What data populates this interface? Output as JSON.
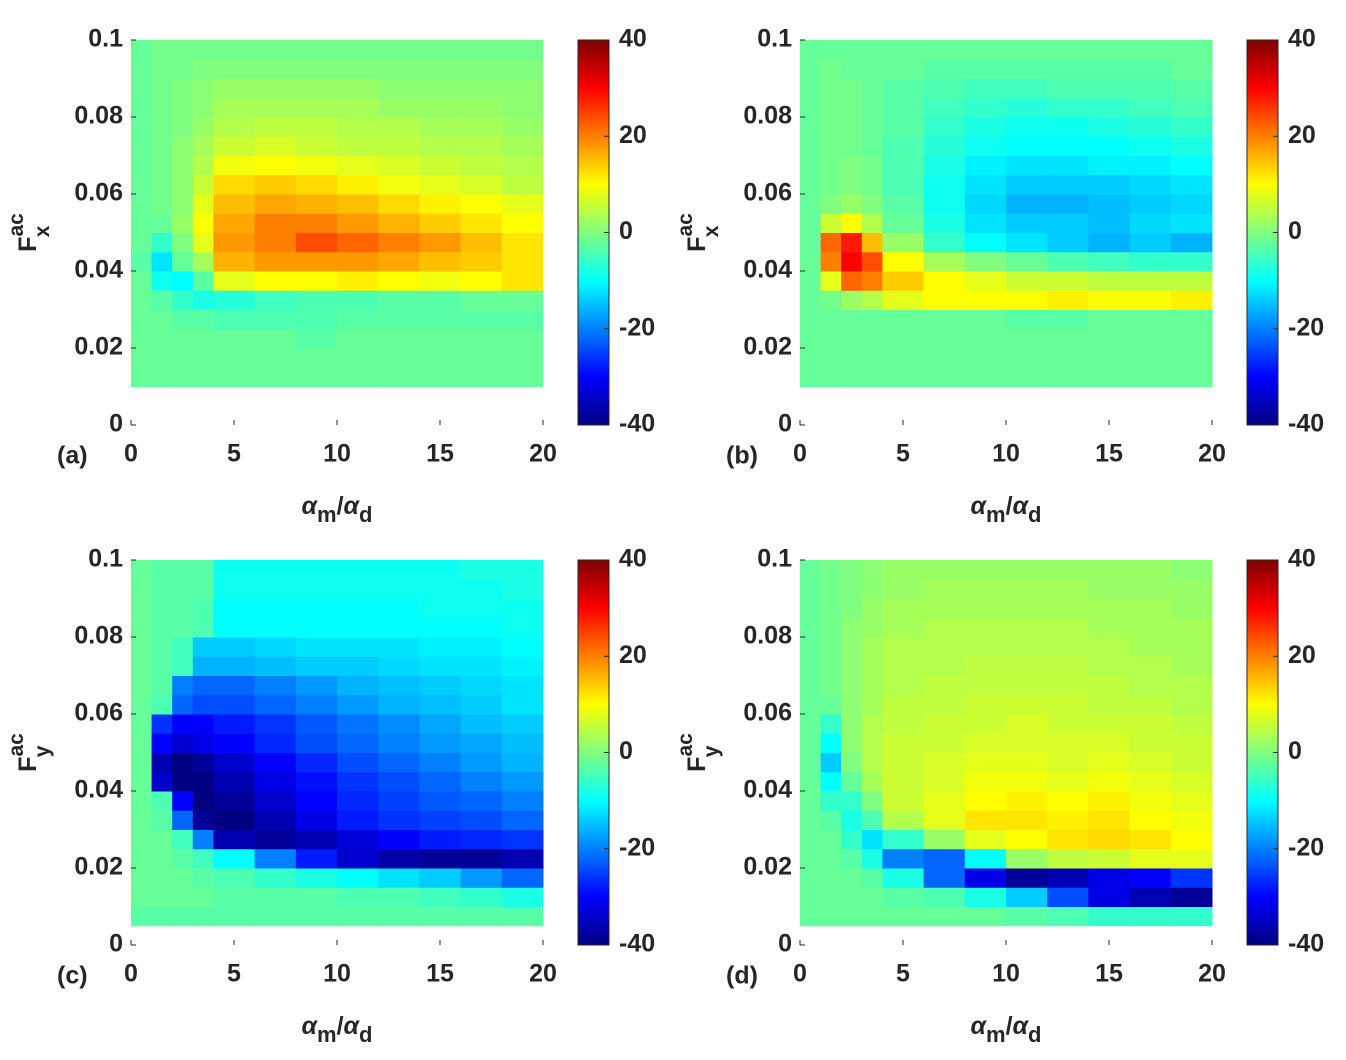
{
  "chart_data": [
    {
      "type": "heatmap",
      "panel_label": "(a)",
      "colormap": "jet",
      "xlabel": {
        "num": "α",
        "num_sub": "m",
        "sep": "/",
        "den": "α",
        "den_sub": "d"
      },
      "ylabel": {
        "main": "F",
        "sub": "x",
        "sup": "ac"
      },
      "xlim": [
        0,
        20
      ],
      "ylim": [
        0,
        0.1
      ],
      "xticks": [
        0,
        5,
        10,
        15,
        20
      ],
      "yticks": [
        0,
        0.02,
        0.04,
        0.06,
        0.08,
        0.1
      ],
      "clim": [
        -40,
        40
      ],
      "cticks": [
        -40,
        -20,
        0,
        20,
        40
      ],
      "xbins": [
        0,
        1,
        2,
        3,
        4,
        6,
        8,
        10,
        12,
        14,
        16,
        18,
        20
      ],
      "ybins": [
        0.01,
        0.015,
        0.02,
        0.025,
        0.03,
        0.035,
        0.04,
        0.045,
        0.05,
        0.055,
        0.06,
        0.065,
        0.07,
        0.075,
        0.08,
        0.085,
        0.09,
        0.095,
        0.1
      ],
      "z": [
        [
          -2,
          -2,
          -2,
          -2,
          -2,
          -2,
          -2,
          -2,
          -2,
          -2,
          -2,
          -2
        ],
        [
          -2,
          -2,
          -2,
          -2,
          -2,
          -2,
          -2,
          -2,
          -2,
          -2,
          -2,
          -2
        ],
        [
          -2,
          -2,
          -2,
          -2,
          -2,
          -2,
          -3,
          -2,
          -2,
          -2,
          -2,
          -2
        ],
        [
          -2,
          -2,
          -3,
          -3,
          -4,
          -4,
          -4,
          -3,
          -3,
          -3,
          -3,
          -3
        ],
        [
          -2,
          -3,
          -6,
          -8,
          -7,
          -5,
          -4,
          -4,
          -3,
          -3,
          -2,
          -2
        ],
        [
          -2,
          -9,
          -10,
          -3,
          8,
          10,
          10,
          11,
          10,
          9,
          10,
          12
        ],
        [
          -3,
          -12,
          -2,
          3,
          16,
          18,
          18,
          18,
          17,
          15,
          14,
          12
        ],
        [
          -2,
          -6,
          0,
          8,
          18,
          20,
          24,
          22,
          20,
          18,
          15,
          12
        ],
        [
          -2,
          -2,
          2,
          10,
          17,
          20,
          20,
          18,
          16,
          14,
          12,
          10
        ],
        [
          -2,
          -1,
          1,
          8,
          15,
          17,
          16,
          15,
          13,
          11,
          10,
          8
        ],
        [
          -2,
          -1,
          1,
          6,
          13,
          14,
          13,
          11,
          9,
          8,
          7,
          5
        ],
        [
          -2,
          -1,
          1,
          4,
          9,
          10,
          9,
          8,
          7,
          6,
          5,
          4
        ],
        [
          -2,
          -1,
          1,
          3,
          6,
          7,
          6,
          5,
          5,
          4,
          4,
          3
        ],
        [
          -2,
          -1,
          0,
          2,
          4,
          5,
          5,
          4,
          4,
          3,
          3,
          2
        ],
        [
          -2,
          -1,
          0,
          1,
          3,
          3,
          3,
          3,
          2,
          2,
          2,
          1
        ],
        [
          -2,
          -1,
          0,
          1,
          2,
          2,
          2,
          2,
          1,
          1,
          1,
          1
        ],
        [
          -2,
          -1,
          -1,
          0,
          0,
          0,
          0,
          0,
          0,
          0,
          0,
          0
        ],
        [
          -2,
          -1,
          -1,
          -1,
          -1,
          -1,
          -1,
          -1,
          -1,
          -1,
          -1,
          -1
        ]
      ]
    },
    {
      "type": "heatmap",
      "panel_label": "(b)",
      "colormap": "jet",
      "xlabel": {
        "num": "α",
        "num_sub": "m",
        "sep": "/",
        "den": "α",
        "den_sub": "d"
      },
      "ylabel": {
        "main": "F",
        "sub": "x",
        "sup": "ac"
      },
      "xlim": [
        0,
        20
      ],
      "ylim": [
        0,
        0.1
      ],
      "xticks": [
        0,
        5,
        10,
        15,
        20
      ],
      "yticks": [
        0,
        0.02,
        0.04,
        0.06,
        0.08,
        0.1
      ],
      "clim": [
        -40,
        40
      ],
      "cticks": [
        -40,
        -20,
        0,
        20,
        40
      ],
      "xbins": [
        0,
        1,
        2,
        3,
        4,
        6,
        8,
        10,
        12,
        14,
        16,
        18,
        20
      ],
      "ybins": [
        0.01,
        0.015,
        0.02,
        0.025,
        0.03,
        0.035,
        0.04,
        0.045,
        0.05,
        0.055,
        0.06,
        0.065,
        0.07,
        0.075,
        0.08,
        0.085,
        0.09,
        0.095,
        0.1
      ],
      "z": [
        [
          -2,
          -2,
          -2,
          -2,
          -2,
          -2,
          -2,
          -2,
          -2,
          -2,
          -2,
          -2
        ],
        [
          -2,
          -2,
          -2,
          -2,
          -2,
          -2,
          -2,
          -2,
          -2,
          -2,
          -2,
          -2
        ],
        [
          -2,
          -2,
          -2,
          -2,
          -2,
          -2,
          -2,
          -2,
          -2,
          -2,
          -2,
          -2
        ],
        [
          -2,
          -2,
          -2,
          -2,
          -2,
          -2,
          -2,
          -3,
          -3,
          -2,
          -2,
          -2
        ],
        [
          -2,
          -1,
          2,
          4,
          8,
          10,
          10,
          10,
          11,
          10,
          10,
          11
        ],
        [
          -2,
          8,
          22,
          20,
          14,
          10,
          8,
          6,
          6,
          5,
          5,
          5
        ],
        [
          -2,
          20,
          30,
          24,
          10,
          3,
          0,
          -2,
          -4,
          -5,
          -6,
          -6
        ],
        [
          -2,
          22,
          28,
          15,
          2,
          -6,
          -10,
          -12,
          -14,
          -16,
          -14,
          -16
        ],
        [
          -2,
          6,
          10,
          4,
          -2,
          -8,
          -12,
          -14,
          -14,
          -15,
          -13,
          -12
        ],
        [
          -2,
          0,
          2,
          0,
          -3,
          -9,
          -13,
          -16,
          -16,
          -15,
          -14,
          -13
        ],
        [
          -2,
          -1,
          0,
          -1,
          -4,
          -9,
          -12,
          -14,
          -14,
          -14,
          -13,
          -12
        ],
        [
          -2,
          -1,
          0,
          -1,
          -4,
          -8,
          -11,
          -12,
          -12,
          -11,
          -11,
          -10
        ],
        [
          -2,
          -1,
          -1,
          -2,
          -4,
          -7,
          -9,
          -10,
          -10,
          -10,
          -9,
          -8
        ],
        [
          -2,
          -1,
          -1,
          -2,
          -3,
          -6,
          -8,
          -9,
          -9,
          -8,
          -7,
          -6
        ],
        [
          -2,
          -1,
          -1,
          -2,
          -3,
          -5,
          -6,
          -7,
          -6,
          -6,
          -5,
          -4
        ],
        [
          -2,
          -1,
          -1,
          -2,
          -3,
          -4,
          -5,
          -5,
          -4,
          -4,
          -4,
          -3
        ],
        [
          -2,
          -1,
          -2,
          -2,
          -2,
          -3,
          -3,
          -3,
          -3,
          -3,
          -3,
          -2
        ],
        [
          -2,
          -2,
          -2,
          -2,
          -2,
          -2,
          -2,
          -2,
          -2,
          -2,
          -2,
          -2
        ]
      ]
    },
    {
      "type": "heatmap",
      "panel_label": "(c)",
      "colormap": "jet",
      "xlabel": {
        "num": "α",
        "num_sub": "m",
        "sep": "/",
        "den": "α",
        "den_sub": "d"
      },
      "ylabel": {
        "main": "F",
        "sub": "y",
        "sup": "ac"
      },
      "xlim": [
        0,
        20
      ],
      "ylim": [
        0,
        0.1
      ],
      "xticks": [
        0,
        5,
        10,
        15,
        20
      ],
      "yticks": [
        0,
        0.02,
        0.04,
        0.06,
        0.08,
        0.1
      ],
      "clim": [
        -40,
        40
      ],
      "cticks": [
        -40,
        -20,
        0,
        20,
        40
      ],
      "xbins": [
        0,
        1,
        2,
        3,
        4,
        6,
        8,
        10,
        12,
        14,
        16,
        18,
        20
      ],
      "ybins": [
        0.005,
        0.01,
        0.015,
        0.02,
        0.025,
        0.03,
        0.035,
        0.04,
        0.045,
        0.05,
        0.055,
        0.06,
        0.065,
        0.07,
        0.075,
        0.08,
        0.085,
        0.09,
        0.095,
        0.1
      ],
      "z": [
        [
          -3,
          -3,
          -3,
          -3,
          -3,
          -3,
          -3,
          -3,
          -3,
          -3,
          -3,
          -3
        ],
        [
          -2,
          -2,
          -2,
          -2,
          -3,
          -3,
          -3,
          -4,
          -4,
          -5,
          -6,
          -8
        ],
        [
          -2,
          -2,
          -2,
          -3,
          -4,
          -6,
          -8,
          -10,
          -12,
          -14,
          -18,
          -22
        ],
        [
          -2,
          -2,
          -3,
          -5,
          -10,
          -20,
          -28,
          -34,
          -37,
          -38,
          -38,
          -36
        ],
        [
          -2,
          -2,
          -5,
          -20,
          -36,
          -38,
          -36,
          -33,
          -30,
          -28,
          -27,
          -26
        ],
        [
          -2,
          -3,
          -22,
          -38,
          -40,
          -36,
          -32,
          -28,
          -26,
          -25,
          -24,
          -22
        ],
        [
          -2,
          -4,
          -30,
          -40,
          -38,
          -34,
          -30,
          -27,
          -25,
          -23,
          -22,
          -20
        ],
        [
          -2,
          -34,
          -40,
          -40,
          -36,
          -32,
          -29,
          -26,
          -24,
          -22,
          -20,
          -18
        ],
        [
          -2,
          -36,
          -40,
          -38,
          -34,
          -30,
          -27,
          -24,
          -22,
          -20,
          -18,
          -16
        ],
        [
          -2,
          -30,
          -34,
          -32,
          -30,
          -27,
          -24,
          -22,
          -20,
          -18,
          -17,
          -15
        ],
        [
          -2,
          -26,
          -30,
          -30,
          -28,
          -26,
          -23,
          -21,
          -19,
          -17,
          -15,
          -14
        ],
        [
          -2,
          -4,
          -22,
          -24,
          -24,
          -22,
          -20,
          -18,
          -16,
          -15,
          -14,
          -12
        ],
        [
          -2,
          -3,
          -20,
          -22,
          -22,
          -20,
          -18,
          -16,
          -15,
          -14,
          -13,
          -12
        ],
        [
          -2,
          -3,
          -5,
          -16,
          -16,
          -15,
          -14,
          -14,
          -13,
          -12,
          -12,
          -11
        ],
        [
          -2,
          -3,
          -5,
          -14,
          -14,
          -13,
          -12,
          -12,
          -12,
          -11,
          -11,
          -10
        ],
        [
          -2,
          -3,
          -3,
          -4,
          -10,
          -10,
          -10,
          -10,
          -10,
          -10,
          -10,
          -9
        ],
        [
          -2,
          -3,
          -3,
          -4,
          -10,
          -10,
          -10,
          -10,
          -10,
          -9,
          -9,
          -9
        ],
        [
          -2,
          -3,
          -3,
          -3,
          -9,
          -9,
          -9,
          -9,
          -9,
          -9,
          -9,
          -8
        ],
        [
          -2,
          -3,
          -3,
          -3,
          -9,
          -9,
          -9,
          -9,
          -9,
          -9,
          -8,
          -8
        ]
      ]
    },
    {
      "type": "heatmap",
      "panel_label": "(d)",
      "colormap": "jet",
      "xlabel": {
        "num": "α",
        "num_sub": "m",
        "sep": "/",
        "den": "α",
        "den_sub": "d"
      },
      "ylabel": {
        "main": "F",
        "sub": "y",
        "sup": "ac"
      },
      "xlim": [
        0,
        20
      ],
      "ylim": [
        0,
        0.1
      ],
      "xticks": [
        0,
        5,
        10,
        15,
        20
      ],
      "yticks": [
        0,
        0.02,
        0.04,
        0.06,
        0.08,
        0.1
      ],
      "clim": [
        -40,
        40
      ],
      "cticks": [
        -40,
        -20,
        0,
        20,
        40
      ],
      "xbins": [
        0,
        1,
        2,
        3,
        4,
        6,
        8,
        10,
        12,
        14,
        16,
        18,
        20
      ],
      "ybins": [
        0.005,
        0.01,
        0.015,
        0.02,
        0.025,
        0.03,
        0.035,
        0.04,
        0.045,
        0.05,
        0.055,
        0.06,
        0.065,
        0.07,
        0.075,
        0.08,
        0.085,
        0.09,
        0.095,
        0.1
      ],
      "z": [
        [
          -2,
          -2,
          -2,
          -2,
          -2,
          -2,
          -2,
          -3,
          -4,
          -6,
          -6,
          -6
        ],
        [
          -2,
          -2,
          -2,
          -2,
          -3,
          -4,
          -8,
          -14,
          -24,
          -32,
          -36,
          -38
        ],
        [
          -2,
          -2,
          -2,
          -3,
          -8,
          -22,
          -32,
          -38,
          -36,
          -32,
          -30,
          -26
        ],
        [
          -2,
          -2,
          -3,
          -8,
          -20,
          -22,
          -10,
          2,
          5,
          6,
          8,
          8
        ],
        [
          -2,
          -2,
          -6,
          -12,
          -6,
          2,
          8,
          10,
          12,
          13,
          12,
          10
        ],
        [
          -2,
          -3,
          -8,
          -4,
          4,
          8,
          12,
          12,
          11,
          12,
          10,
          9
        ],
        [
          -2,
          -6,
          -6,
          0,
          6,
          8,
          10,
          11,
          10,
          11,
          9,
          8
        ],
        [
          -2,
          -10,
          -2,
          3,
          6,
          7,
          9,
          9,
          8,
          9,
          8,
          7
        ],
        [
          -2,
          -14,
          0,
          4,
          6,
          7,
          8,
          8,
          7,
          8,
          7,
          6
        ],
        [
          -2,
          -10,
          1,
          4,
          6,
          6,
          7,
          7,
          7,
          7,
          6,
          6
        ],
        [
          -2,
          -6,
          1,
          4,
          5,
          6,
          6,
          7,
          6,
          6,
          6,
          5
        ],
        [
          -2,
          -2,
          1,
          3,
          5,
          5,
          6,
          6,
          6,
          5,
          5,
          4
        ],
        [
          -2,
          -1,
          1,
          3,
          4,
          5,
          5,
          5,
          5,
          5,
          4,
          4
        ],
        [
          -2,
          -1,
          1,
          3,
          4,
          4,
          5,
          5,
          5,
          4,
          4,
          3
        ],
        [
          -2,
          -1,
          1,
          3,
          4,
          4,
          4,
          4,
          4,
          4,
          3,
          3
        ],
        [
          -2,
          -1,
          1,
          2,
          3,
          4,
          4,
          4,
          4,
          3,
          3,
          3
        ],
        [
          -2,
          -1,
          0,
          2,
          3,
          3,
          3,
          3,
          3,
          3,
          3,
          2
        ],
        [
          -2,
          -1,
          0,
          1,
          2,
          3,
          3,
          3,
          3,
          2,
          2,
          2
        ],
        [
          -2,
          -1,
          0,
          1,
          2,
          2,
          2,
          2,
          2,
          2,
          2,
          1
        ]
      ]
    }
  ]
}
